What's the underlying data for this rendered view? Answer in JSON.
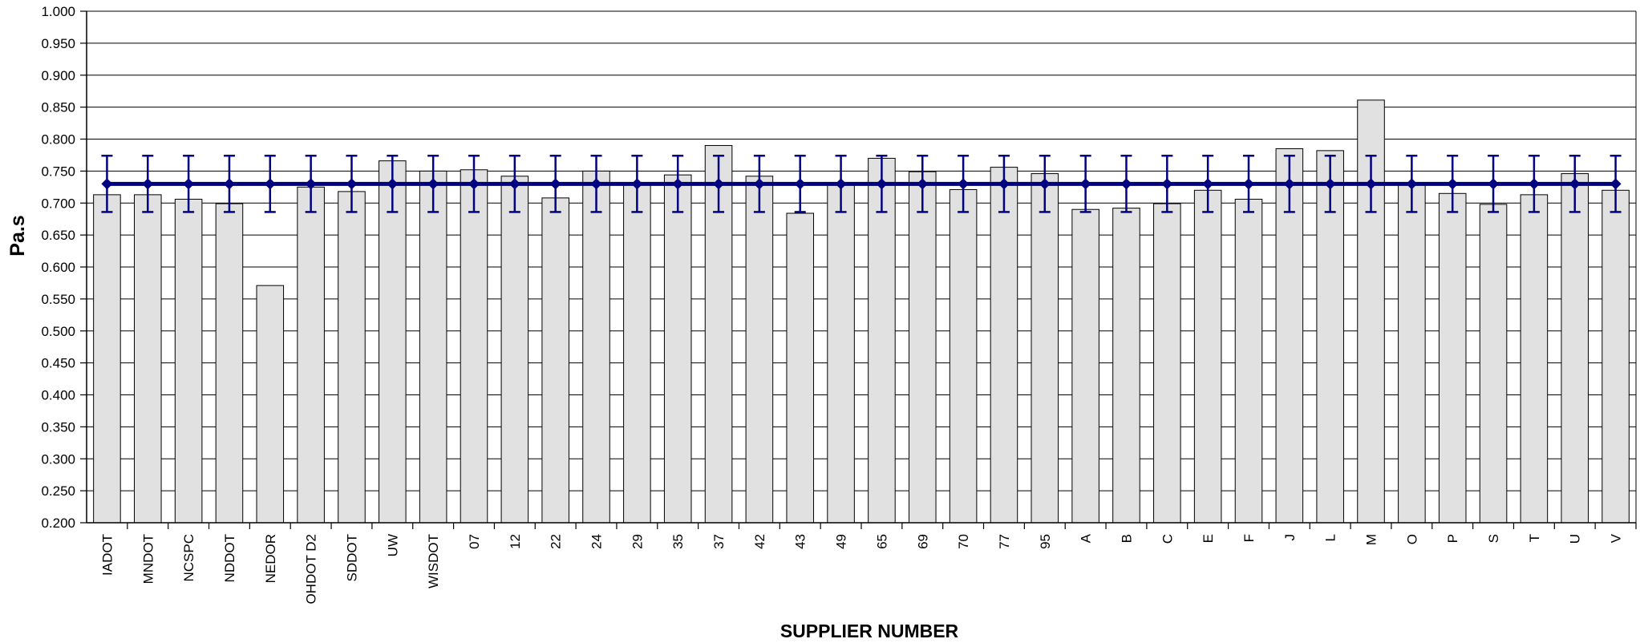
{
  "chart_data": {
    "type": "bar",
    "title": "",
    "xlabel": "SUPPLIER NUMBER",
    "ylabel": "Pa.s",
    "ylim": [
      0.2,
      1.0
    ],
    "ytick_step": 0.05,
    "grid": "horizontal",
    "categories": [
      "IADOT",
      "MNDOT",
      "NCSPC",
      "NDDOT",
      "NEDOR",
      "OHDOT D2",
      "SDDOT",
      "UW",
      "WISDOT",
      "07",
      "12",
      "22",
      "24",
      "29",
      "35",
      "37",
      "42",
      "43",
      "49",
      "65",
      "69",
      "70",
      "77",
      "95",
      "A",
      "B",
      "C",
      "E",
      "F",
      "J",
      "L",
      "M",
      "O",
      "P",
      "S",
      "T",
      "U",
      "V"
    ],
    "series": [
      {
        "kind": "bar",
        "color": "#e1e1e1",
        "values": [
          0.713,
          0.713,
          0.706,
          0.699,
          0.571,
          0.725,
          0.718,
          0.766,
          0.75,
          0.752,
          0.742,
          0.708,
          0.75,
          0.729,
          0.744,
          0.79,
          0.742,
          0.684,
          0.729,
          0.77,
          0.749,
          0.721,
          0.756,
          0.746,
          0.69,
          0.692,
          0.699,
          0.72,
          0.706,
          0.785,
          0.782,
          0.861,
          0.729,
          0.715,
          0.698,
          0.713,
          0.746,
          0.72
        ]
      },
      {
        "kind": "line",
        "color": "#000080",
        "values": [
          0.73,
          0.73,
          0.73,
          0.73,
          0.73,
          0.73,
          0.73,
          0.73,
          0.73,
          0.73,
          0.73,
          0.73,
          0.73,
          0.73,
          0.73,
          0.73,
          0.73,
          0.73,
          0.73,
          0.73,
          0.73,
          0.73,
          0.73,
          0.73,
          0.73,
          0.73,
          0.73,
          0.73,
          0.73,
          0.73,
          0.73,
          0.73,
          0.73,
          0.73,
          0.73,
          0.73,
          0.73,
          0.73
        ],
        "error_low": 0.686,
        "error_high": 0.774
      }
    ]
  }
}
